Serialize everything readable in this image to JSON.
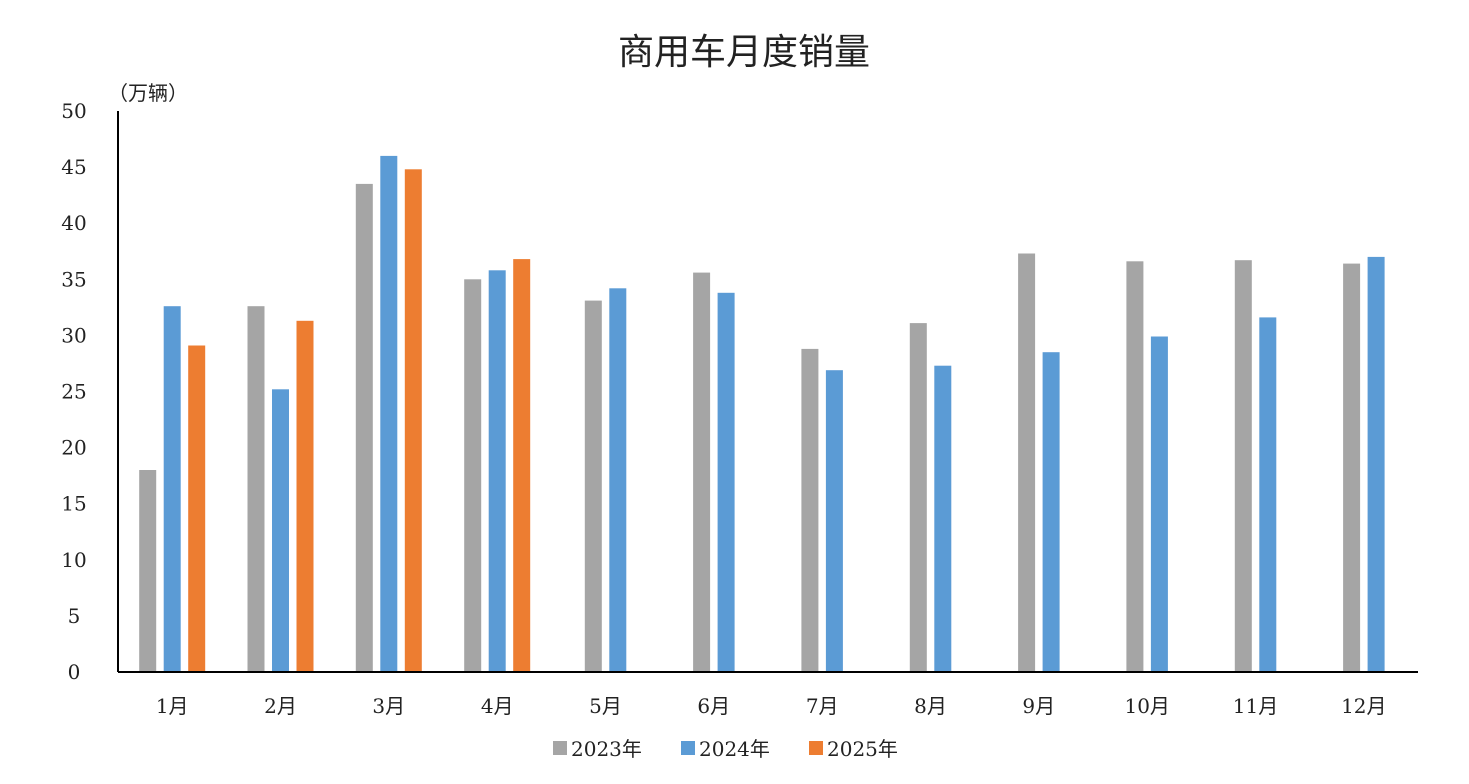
{
  "chart_data": {
    "type": "bar",
    "title": "商用车月度销量",
    "unit_label": "（万辆）",
    "xlabel": "",
    "ylabel": "",
    "ylim": [
      0,
      50
    ],
    "yticks": [
      0,
      5,
      10,
      15,
      20,
      25,
      30,
      35,
      40,
      45,
      50
    ],
    "grid": false,
    "legend_position": "bottom",
    "categories": [
      "1月",
      "2月",
      "3月",
      "4月",
      "5月",
      "6月",
      "7月",
      "8月",
      "9月",
      "10月",
      "11月",
      "12月"
    ],
    "series": [
      {
        "name": "2023年",
        "color": "#a5a5a5",
        "values": [
          18,
          32.6,
          43.5,
          35,
          33.1,
          35.6,
          28.8,
          31.1,
          37.3,
          36.6,
          36.7,
          36.4
        ]
      },
      {
        "name": "2024年",
        "color": "#5b9bd5",
        "values": [
          32.6,
          25.2,
          46,
          35.8,
          34.2,
          33.8,
          26.9,
          27.3,
          28.5,
          29.9,
          31.6,
          37
        ]
      },
      {
        "name": "2025年",
        "color": "#ed7d31",
        "values": [
          29.1,
          31.3,
          44.8,
          36.8,
          null,
          null,
          null,
          null,
          null,
          null,
          null,
          null
        ]
      }
    ]
  }
}
